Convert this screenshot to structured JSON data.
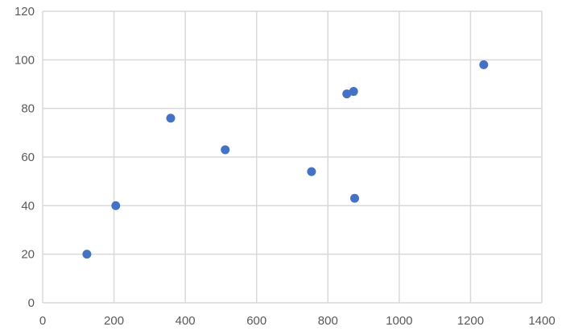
{
  "chart_data": {
    "type": "scatter",
    "title": "",
    "xlabel": "",
    "ylabel": "",
    "xlim": [
      0,
      1400
    ],
    "ylim": [
      0,
      120
    ],
    "xticks": [
      0,
      200,
      400,
      600,
      800,
      1000,
      1200,
      1400
    ],
    "yticks": [
      0,
      20,
      40,
      60,
      80,
      100,
      120
    ],
    "grid": true,
    "legend": "none",
    "marker_color": "#4472C4",
    "gridline_color": "#D9D9D9",
    "points": [
      {
        "x": 124,
        "y": 20
      },
      {
        "x": 205,
        "y": 40
      },
      {
        "x": 359,
        "y": 76
      },
      {
        "x": 512,
        "y": 63
      },
      {
        "x": 754,
        "y": 54
      },
      {
        "x": 853,
        "y": 86
      },
      {
        "x": 872,
        "y": 87
      },
      {
        "x": 875,
        "y": 43
      },
      {
        "x": 1237,
        "y": 98
      }
    ]
  }
}
